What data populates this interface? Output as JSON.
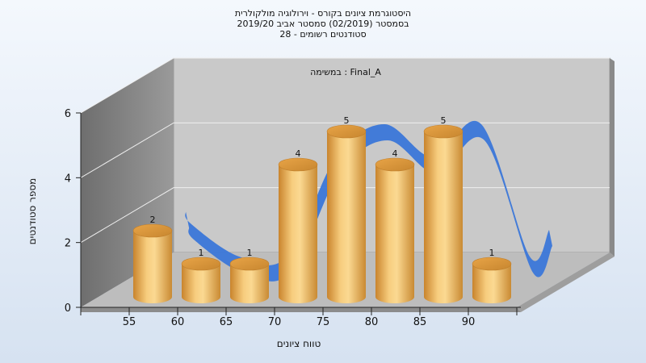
{
  "chart_data": {
    "type": "bar",
    "title": [
      "היסטוגרמת ציונים בקורס - וירולוגיה מולקולרית",
      "בסמסטר  (02/2019)  סמסטר אביב 2019/20",
      "סטודנטים רשומים - 28"
    ],
    "annotation": "Final_A : במשימה",
    "xlabel": "טווח ציונים",
    "ylabel": "מספר סטודנטים",
    "categories": [
      "55",
      "60",
      "65",
      "70",
      "75",
      "80",
      "85",
      "90"
    ],
    "values": [
      2,
      1,
      1,
      4,
      5,
      4,
      5,
      1
    ],
    "data_labels": [
      "2",
      "1",
      "1",
      "4",
      "5",
      "4",
      "5",
      "1"
    ],
    "yticks": [
      "0",
      "2",
      "4",
      "6"
    ],
    "ylim": [
      0,
      6
    ],
    "bar_color": "#f0b04e",
    "curve_color": "#3c78d8",
    "grid": true
  }
}
